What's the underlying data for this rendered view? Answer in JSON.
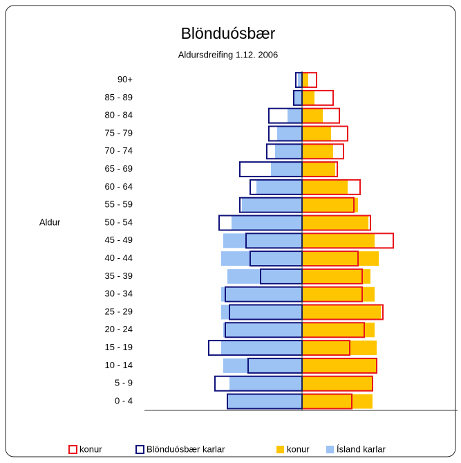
{
  "chart_data": {
    "type": "pyramid",
    "title": "Blönduósbær",
    "subtitle": "Aldursdreifing 1.12. 2006",
    "ylabel": "Aldur",
    "categories": [
      "0 - 4",
      "5 - 9",
      "10 - 14",
      "15 - 19",
      "20 - 24",
      "25 - 29",
      "30 - 34",
      "35 - 39",
      "40 - 44",
      "45 - 49",
      "50 - 54",
      "55 - 59",
      "60 - 64",
      "65 - 69",
      "70 - 74",
      "75 - 79",
      "80 - 84",
      "85 - 89",
      "90+"
    ],
    "series": [
      {
        "name": "konur",
        "color": "#e8141b",
        "filled": false,
        "values": [
          2.4,
          3.4,
          3.6,
          2.3,
          3.0,
          3.9,
          2.9,
          2.9,
          2.7,
          4.4,
          3.3,
          2.5,
          2.8,
          1.7,
          2.0,
          2.2,
          1.8,
          1.5,
          0.7
        ]
      },
      {
        "name": "Blönduósbær karlar",
        "color": "#10127a",
        "filled": false,
        "values": [
          3.6,
          4.2,
          2.6,
          4.5,
          3.7,
          3.5,
          3.7,
          2.0,
          2.5,
          2.7,
          4.0,
          3.0,
          2.5,
          3.0,
          1.7,
          1.6,
          1.6,
          0.4,
          0.3
        ]
      },
      {
        "name": "konur",
        "color": "#ffc600",
        "filled": true,
        "values": [
          3.4,
          3.4,
          3.6,
          3.6,
          3.5,
          3.8,
          3.5,
          3.3,
          3.7,
          3.5,
          3.2,
          2.7,
          2.2,
          1.6,
          1.5,
          1.4,
          1.0,
          0.6,
          0.3
        ]
      },
      {
        "name": "Ísland karlar",
        "color": "#9dc3f5",
        "filled": true,
        "values": [
          3.6,
          3.5,
          3.8,
          3.9,
          3.8,
          3.9,
          3.9,
          3.6,
          3.9,
          3.8,
          3.4,
          2.9,
          2.2,
          1.5,
          1.3,
          1.2,
          0.7,
          0.4,
          0.2
        ]
      }
    ]
  }
}
